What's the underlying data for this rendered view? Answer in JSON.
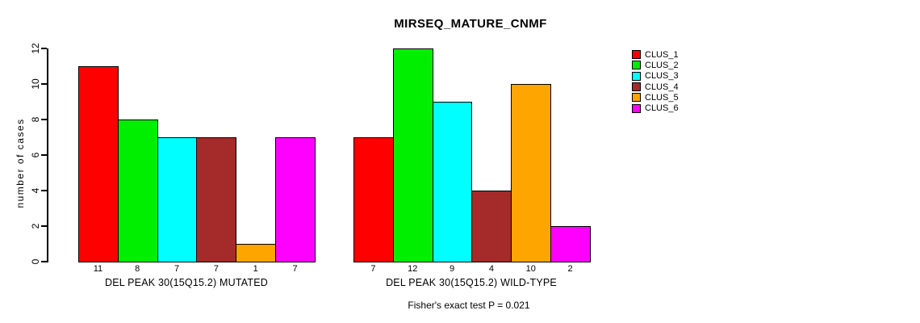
{
  "chart_data": {
    "type": "bar",
    "title": "MIRSEQ_MATURE_CNMF",
    "ylabel": "number of cases",
    "xlabel": "",
    "ylim": [
      0,
      12
    ],
    "yticks": [
      0,
      2,
      4,
      6,
      8,
      10,
      12
    ],
    "grid": false,
    "legend_position": "right",
    "categories": [
      "DEL PEAK 30(15Q15.2) MUTATED",
      "DEL PEAK 30(15Q15.2) WILD-TYPE"
    ],
    "series": [
      {
        "name": "CLUS_1",
        "color": "#FF0000",
        "values": [
          11,
          7
        ]
      },
      {
        "name": "CLUS_2",
        "color": "#00EE00",
        "values": [
          8,
          12
        ]
      },
      {
        "name": "CLUS_3",
        "color": "#00FFFF",
        "values": [
          7,
          9
        ]
      },
      {
        "name": "CLUS_4",
        "color": "#A52A2A",
        "values": [
          7,
          4
        ]
      },
      {
        "name": "CLUS_5",
        "color": "#FFA500",
        "values": [
          1,
          10
        ]
      },
      {
        "name": "CLUS_6",
        "color": "#FF00FF",
        "values": [
          7,
          2
        ]
      }
    ],
    "bar_value_labels": [
      [
        "11",
        "8",
        "7",
        "7",
        "1",
        "7"
      ],
      [
        "7",
        "12",
        "9",
        "4",
        "10",
        "2"
      ]
    ],
    "annotation": "Fisher's exact test P = 0.021"
  },
  "colors": {
    "background": "#FFFFFF",
    "axis": "#000000",
    "text": "#000000"
  }
}
